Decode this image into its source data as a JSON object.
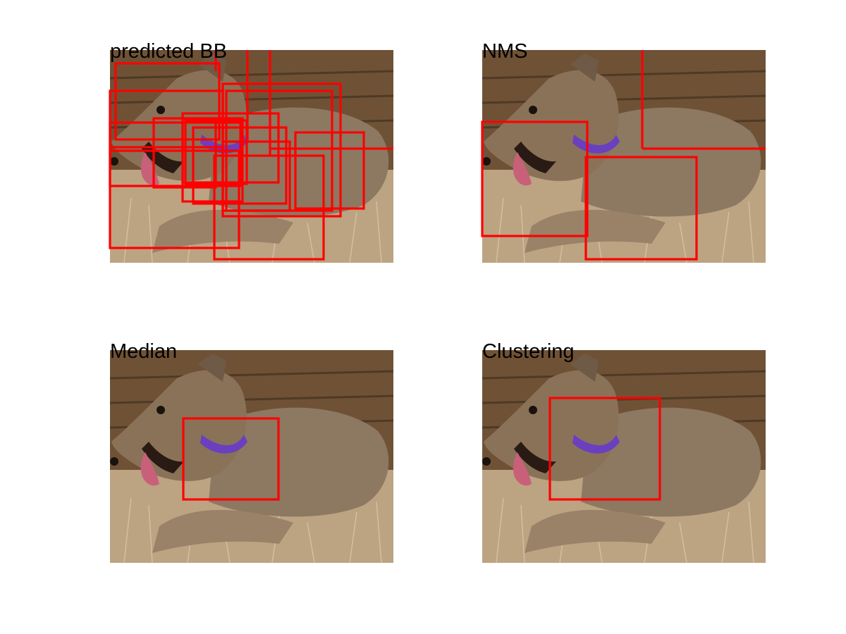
{
  "panels": [
    {
      "title": "predicted BB"
    },
    {
      "title": "NMS"
    },
    {
      "title": "Median"
    },
    {
      "title": "Clustering"
    }
  ],
  "colors": {
    "box": "#ff0000",
    "background_wood": "#7a5a3a",
    "dog_coat": "#8a7560",
    "grass": "#bda685",
    "collar": "#6a3fc0",
    "tongue": "#c8607a"
  }
}
